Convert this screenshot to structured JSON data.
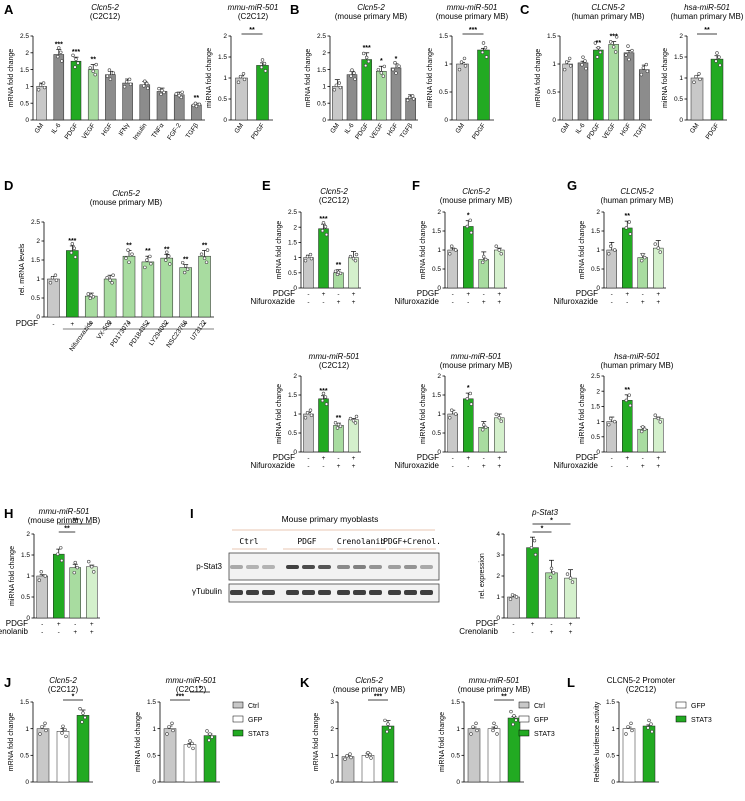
{
  "colors": {
    "grey": "#c8c8c8",
    "darkgrey": "#8c8c8c",
    "green": "#22aa22",
    "lightgreen": "#a8dca0",
    "paler": "#d4f0cc",
    "white": "#ffffff"
  },
  "panel_letters": [
    "A",
    "B",
    "C",
    "D",
    "E",
    "F",
    "G",
    "H",
    "I",
    "J",
    "K",
    "L"
  ],
  "western_blot": {
    "title": "Mouse primary myoblasts",
    "lanes": [
      "Ctrl",
      "PDGF",
      "Crenolanib",
      "PDGF+Crenol."
    ],
    "bands": [
      "p-Stat3",
      "γTubulin"
    ]
  },
  "legend_ctrl_gfp_stat3": [
    "Ctrl",
    "GFP",
    "STAT3"
  ],
  "legend_gfp_stat3": [
    "GFP",
    "STAT3"
  ],
  "treatment_rows": {
    "pdgf_only": {
      "label": "PDGF",
      "signs": [
        "-",
        "+",
        "-",
        "-",
        "-",
        "-",
        "-",
        "-",
        "-",
        "-"
      ]
    },
    "pdgf_nifur": {
      "rows": [
        {
          "label": "PDGF",
          "signs": [
            "-",
            "+",
            "-",
            "+"
          ]
        },
        {
          "label": "Nifuroxazide",
          "signs": [
            "-",
            "-",
            "+",
            "+"
          ]
        }
      ]
    },
    "pdgf_creno": {
      "rows": [
        {
          "label": "PDGF",
          "signs": [
            "-",
            "+",
            "-",
            "+"
          ]
        },
        {
          "label": "Crenolanib",
          "signs": [
            "-",
            "-",
            "+",
            "+"
          ]
        }
      ]
    }
  },
  "chart_data": [
    {
      "id": "A1",
      "type": "bar",
      "panel": "A",
      "title": "Clcn5-2",
      "subtitle": "(C2C12)",
      "ylabel": "mRNA fold change",
      "ylim": [
        0,
        2.5
      ],
      "yticks": [
        0,
        0.5,
        1.0,
        1.5,
        2.0,
        2.5
      ],
      "categories": [
        "GM",
        "IL-6",
        "PDGF",
        "VEGF",
        "HGF",
        "IFNγ",
        "Insulin",
        "TNFα",
        "FGF-2",
        "TGFβ"
      ],
      "values": [
        1.0,
        1.95,
        1.75,
        1.5,
        1.35,
        1.1,
        1.05,
        0.85,
        0.75,
        0.45
      ],
      "errors": [
        0.1,
        0.15,
        0.12,
        0.15,
        0.1,
        0.12,
        0.1,
        0.1,
        0.08,
        0.05
      ],
      "significance": [
        "",
        "***",
        "***",
        "**",
        "",
        "",
        "",
        "",
        "",
        "**"
      ],
      "colors": [
        "grey",
        "darkgrey",
        "green",
        "lightgreen",
        "darkgrey",
        "darkgrey",
        "darkgrey",
        "darkgrey",
        "darkgrey",
        "darkgrey"
      ]
    },
    {
      "id": "A2",
      "type": "bar",
      "panel": "A",
      "title": "mmu-miR-501",
      "subtitle": "(C2C12)",
      "ylabel": "miRNA fold change",
      "ylim": [
        0,
        2.0
      ],
      "yticks": [
        0,
        0.5,
        1.0,
        1.5,
        2.0
      ],
      "categories": [
        "GM",
        "PDGF"
      ],
      "values": [
        1.0,
        1.3
      ],
      "errors": [
        0.05,
        0.06
      ],
      "significance": [
        "",
        ""
      ],
      "colors": [
        "grey",
        "green"
      ],
      "bracket": {
        "label": "**"
      }
    },
    {
      "id": "B1",
      "type": "bar",
      "panel": "B",
      "title": "Clcn5-2",
      "subtitle": "(mouse primary MB)",
      "ylabel": "mRNA fold change",
      "ylim": [
        0,
        2.5
      ],
      "yticks": [
        0,
        0.5,
        1.0,
        1.5,
        2.0,
        2.5
      ],
      "categories": [
        "GM",
        "IL-6",
        "PDGF",
        "VEGF",
        "HGF",
        "TGFβ"
      ],
      "values": [
        1.0,
        1.35,
        1.8,
        1.45,
        1.55,
        0.65
      ],
      "errors": [
        0.2,
        0.1,
        0.2,
        0.15,
        0.12,
        0.1
      ],
      "significance": [
        "",
        "",
        "***",
        "*",
        "*",
        ""
      ],
      "colors": [
        "grey",
        "darkgrey",
        "green",
        "lightgreen",
        "darkgrey",
        "darkgrey"
      ]
    },
    {
      "id": "B2",
      "type": "bar",
      "panel": "B",
      "title": "mmu-miR-501",
      "subtitle": "(mouse primary MB)",
      "ylabel": "miRNA fold change",
      "ylim": [
        0,
        1.5
      ],
      "yticks": [
        0,
        0.5,
        1.0,
        1.5
      ],
      "categories": [
        "GM",
        "PDGF"
      ],
      "values": [
        1.0,
        1.25
      ],
      "errors": [
        0.03,
        0.03
      ],
      "significance": [
        "",
        ""
      ],
      "colors": [
        "grey",
        "green"
      ],
      "bracket": {
        "label": "***"
      }
    },
    {
      "id": "C1",
      "type": "bar",
      "panel": "C",
      "title": "CLCN5-2",
      "subtitle": "(human primary MB)",
      "ylabel": "mRNA fold change",
      "ylim": [
        0,
        1.5
      ],
      "yticks": [
        0,
        0.5,
        1.0,
        1.5
      ],
      "categories": [
        "GM",
        "IL-6",
        "PDGF",
        "VEGF",
        "HGF",
        "TGFβ"
      ],
      "values": [
        1.0,
        1.02,
        1.25,
        1.35,
        1.2,
        0.9
      ],
      "errors": [
        0.05,
        0.03,
        0.04,
        0.05,
        0.04,
        0.08
      ],
      "significance": [
        "",
        "",
        "**",
        "***",
        "",
        ""
      ],
      "colors": [
        "grey",
        "darkgrey",
        "green",
        "lightgreen",
        "darkgrey",
        "darkgrey"
      ]
    },
    {
      "id": "C2",
      "type": "bar",
      "panel": "C",
      "title": "hsa-miR-501",
      "subtitle": "(human primary MB)",
      "ylabel": "miRNA fold change",
      "ylim": [
        0,
        2.0
      ],
      "yticks": [
        0,
        0.5,
        1.0,
        1.5,
        2.0
      ],
      "categories": [
        "GM",
        "PDGF"
      ],
      "values": [
        1.0,
        1.45
      ],
      "errors": [
        0.06,
        0.08
      ],
      "significance": [
        "",
        ""
      ],
      "colors": [
        "grey",
        "green"
      ],
      "bracket": {
        "label": "**"
      }
    },
    {
      "id": "D",
      "type": "bar",
      "panel": "D",
      "title": "Clcn5-2",
      "subtitle": "(mouse primary MB)",
      "ylabel": "rel. mRNA levels",
      "ylim": [
        0,
        2.5
      ],
      "yticks": [
        0,
        0.5,
        1.0,
        1.5,
        2.0,
        2.5
      ],
      "categories": [
        "",
        "",
        "Nifuroxazide",
        "VX-509",
        "PD173074",
        "PD184352",
        "LY294002",
        "NSC23766",
        "U73122"
      ],
      "values": [
        1.0,
        1.75,
        0.55,
        1.0,
        1.6,
        1.45,
        1.55,
        1.3,
        1.6
      ],
      "errors": [
        0.07,
        0.12,
        0.08,
        0.1,
        0.15,
        0.15,
        0.1,
        0.08,
        0.15
      ],
      "significance": [
        "",
        "***",
        "",
        "",
        "**",
        "**",
        "**",
        "**",
        "**"
      ],
      "colors": [
        "grey",
        "green",
        "lightgreen",
        "lightgreen",
        "lightgreen",
        "lightgreen",
        "lightgreen",
        "lightgreen",
        "lightgreen"
      ],
      "pdgf_signs": [
        "-",
        "+",
        "+",
        "+",
        "+",
        "+",
        "+",
        "+",
        "+"
      ]
    },
    {
      "id": "E1",
      "type": "bar",
      "panel": "E",
      "title": "Clcn5-2",
      "subtitle": "(C2C12)",
      "ylabel": "mRNA fold change",
      "ylim": [
        0,
        2.5
      ],
      "yticks": [
        0,
        0.5,
        1.0,
        1.5,
        2.0,
        2.5
      ],
      "categories": [
        "",
        "",
        "",
        ""
      ],
      "values": [
        1.0,
        1.95,
        0.5,
        1.0
      ],
      "errors": [
        0.08,
        0.15,
        0.1,
        0.2
      ],
      "significance": [
        "",
        "***",
        "**",
        ""
      ],
      "colors": [
        "grey",
        "green",
        "lightgreen",
        "paler"
      ]
    },
    {
      "id": "F1",
      "type": "bar",
      "panel": "F",
      "title": "Clcn5-2",
      "subtitle": "(mouse primary MB)",
      "ylabel": "mRNA fold change",
      "ylim": [
        0,
        2.0
      ],
      "yticks": [
        0,
        0.5,
        1.0,
        1.5,
        2.0
      ],
      "categories": [
        "",
        "",
        "",
        ""
      ],
      "values": [
        1.0,
        1.62,
        0.75,
        1.0
      ],
      "errors": [
        0.05,
        0.15,
        0.2,
        0.05
      ],
      "significance": [
        "",
        "*",
        "",
        ""
      ],
      "colors": [
        "grey",
        "green",
        "lightgreen",
        "paler"
      ]
    },
    {
      "id": "G1",
      "type": "bar",
      "panel": "G",
      "title": "CLCN5-2",
      "subtitle": "(human primary MB)",
      "ylabel": "mRNA fold change",
      "ylim": [
        0,
        2.0
      ],
      "yticks": [
        0,
        0.5,
        1.0,
        1.5,
        2.0
      ],
      "categories": [
        "",
        "",
        "",
        ""
      ],
      "values": [
        1.0,
        1.58,
        0.8,
        1.05
      ],
      "errors": [
        0.2,
        0.18,
        0.1,
        0.2
      ],
      "significance": [
        "",
        "**",
        "",
        ""
      ],
      "colors": [
        "grey",
        "green",
        "lightgreen",
        "paler"
      ]
    },
    {
      "id": "E2",
      "type": "bar",
      "panel": "E",
      "title": "mmu-miR-501",
      "subtitle": "(C2C12)",
      "ylabel": "miRNA fold change",
      "ylim": [
        0,
        2.0
      ],
      "yticks": [
        0,
        0.5,
        1.0,
        1.5,
        2.0
      ],
      "categories": [
        "",
        "",
        "",
        ""
      ],
      "values": [
        1.0,
        1.4,
        0.7,
        0.85
      ],
      "errors": [
        0.04,
        0.08,
        0.06,
        0.03
      ],
      "significance": [
        "",
        "***",
        "**",
        ""
      ],
      "colors": [
        "grey",
        "green",
        "lightgreen",
        "paler"
      ]
    },
    {
      "id": "F2",
      "type": "bar",
      "panel": "F",
      "title": "mmu-miR-501",
      "subtitle": "(mouse primary MB)",
      "ylabel": "miRNA fold change",
      "ylim": [
        0,
        2.0
      ],
      "yticks": [
        0,
        0.5,
        1.0,
        1.5,
        2.0
      ],
      "categories": [
        "",
        "",
        "",
        ""
      ],
      "values": [
        1.0,
        1.4,
        0.65,
        0.9
      ],
      "errors": [
        0.1,
        0.15,
        0.15,
        0.1
      ],
      "significance": [
        "",
        "*",
        "",
        ""
      ],
      "colors": [
        "grey",
        "green",
        "lightgreen",
        "paler"
      ]
    },
    {
      "id": "G2",
      "type": "bar",
      "panel": "G",
      "title": "hsa-miR-501",
      "subtitle": "(human primary MB)",
      "ylabel": "miRNA fold change",
      "ylim": [
        0,
        2.5
      ],
      "yticks": [
        0,
        0.5,
        1.0,
        1.5,
        2.0,
        2.5
      ],
      "categories": [
        "",
        "",
        "",
        ""
      ],
      "values": [
        1.0,
        1.7,
        0.75,
        1.1
      ],
      "errors": [
        0.15,
        0.18,
        0.08,
        0.05
      ],
      "significance": [
        "",
        "**",
        "",
        ""
      ],
      "colors": [
        "grey",
        "green",
        "lightgreen",
        "paler"
      ]
    },
    {
      "id": "H",
      "type": "bar",
      "panel": "H",
      "title": "mmu-miR-501",
      "subtitle": "(mouse primary MB)",
      "ylabel": "miRNA fold change",
      "ylim": [
        0,
        2.0
      ],
      "yticks": [
        0,
        0.5,
        1.0,
        1.5,
        2.0
      ],
      "categories": [
        "",
        "",
        "",
        ""
      ],
      "values": [
        1.0,
        1.52,
        1.2,
        1.22
      ],
      "errors": [
        0.03,
        0.12,
        0.08,
        0.04
      ],
      "significance": [
        "",
        "",
        "",
        ""
      ],
      "colors": [
        "grey",
        "green",
        "lightgreen",
        "paler"
      ],
      "brackets": [
        {
          "from": 1,
          "to": 2,
          "label": "**"
        },
        {
          "from": 1,
          "to": 3,
          "label": "**"
        }
      ]
    },
    {
      "id": "I",
      "type": "bar",
      "panel": "I",
      "title": "p-Stat3",
      "subtitle": "",
      "ylabel": "rel. expression",
      "ylim": [
        0,
        4
      ],
      "yticks": [
        0,
        1,
        2,
        3,
        4
      ],
      "categories": [
        "",
        "",
        "",
        ""
      ],
      "values": [
        1.0,
        3.35,
        2.15,
        1.9
      ],
      "errors": [
        0.1,
        0.5,
        0.6,
        0.4
      ],
      "significance": [
        "",
        "",
        "",
        ""
      ],
      "colors": [
        "grey",
        "green",
        "lightgreen",
        "paler"
      ],
      "brackets": [
        {
          "from": 1,
          "to": 2,
          "label": "*"
        },
        {
          "from": 1,
          "to": 3,
          "label": "*"
        }
      ]
    },
    {
      "id": "J1",
      "type": "bar",
      "panel": "J",
      "title": "Clcn5-2",
      "subtitle": "(C2C12)",
      "ylabel": "mRNA fold change",
      "ylim": [
        0,
        1.5
      ],
      "yticks": [
        0,
        0.5,
        1.0,
        1.5
      ],
      "categories": [
        "",
        "",
        ""
      ],
      "values": [
        1.0,
        0.95,
        1.25
      ],
      "errors": [
        0.05,
        0.05,
        0.1
      ],
      "significance": [
        "",
        "",
        ""
      ],
      "colors": [
        "grey",
        "white",
        "green"
      ],
      "brackets": [
        {
          "from": 1,
          "to": 2,
          "label": "*"
        }
      ]
    },
    {
      "id": "J2",
      "type": "bar",
      "panel": "J",
      "title": "mmu-miR-501",
      "subtitle": "(C2C12)",
      "ylabel": "miRNA fold change",
      "ylim": [
        0,
        1.5
      ],
      "yticks": [
        0,
        0.5,
        1.0,
        1.5
      ],
      "categories": [
        "",
        "",
        ""
      ],
      "values": [
        1.0,
        0.7,
        0.87
      ],
      "errors": [
        0.05,
        0.02,
        0.03
      ],
      "significance": [
        "",
        "",
        ""
      ],
      "colors": [
        "grey",
        "white",
        "green"
      ],
      "brackets": [
        {
          "from": 0,
          "to": 1,
          "label": "***"
        },
        {
          "from": 1,
          "to": 2,
          "label": "*"
        }
      ]
    },
    {
      "id": "K1",
      "type": "bar",
      "panel": "K",
      "title": "Clcn5-2",
      "subtitle": "(mouse primary MB)",
      "ylabel": "mRNA fold change",
      "ylim": [
        0,
        3
      ],
      "yticks": [
        0,
        1,
        2,
        3
      ],
      "categories": [
        "",
        "",
        ""
      ],
      "values": [
        0.95,
        1.0,
        2.1
      ],
      "errors": [
        0.05,
        0.08,
        0.2
      ],
      "significance": [
        "",
        "",
        ""
      ],
      "colors": [
        "grey",
        "white",
        "green"
      ],
      "brackets": [
        {
          "from": 1,
          "to": 2,
          "label": "***"
        }
      ]
    },
    {
      "id": "K2",
      "type": "bar",
      "panel": "K",
      "title": "mmu-miR-501",
      "subtitle": "(mouse primary MB)",
      "ylabel": "miRNA fold change",
      "ylim": [
        0,
        1.5
      ],
      "yticks": [
        0,
        0.5,
        1.0,
        1.5
      ],
      "categories": [
        "",
        "",
        ""
      ],
      "values": [
        1.0,
        1.0,
        1.2
      ],
      "errors": [
        0.03,
        0.03,
        0.03
      ],
      "significance": [
        "",
        "",
        ""
      ],
      "colors": [
        "grey",
        "white",
        "green"
      ],
      "brackets": [
        {
          "from": 1,
          "to": 2,
          "label": "**"
        }
      ]
    },
    {
      "id": "L",
      "type": "bar",
      "panel": "L",
      "title": "CLCN5-2 Promoter",
      "subtitle": "(C2C12)",
      "ylabel": "Relative luciferace activity",
      "ylim": [
        0,
        1.5
      ],
      "yticks": [
        0,
        0.5,
        1.0,
        1.5
      ],
      "categories": [
        "",
        ""
      ],
      "values": [
        1.0,
        1.05
      ],
      "errors": [
        0.03,
        0.02
      ],
      "significance": [
        "",
        ""
      ],
      "colors": [
        "white",
        "green"
      ]
    }
  ]
}
